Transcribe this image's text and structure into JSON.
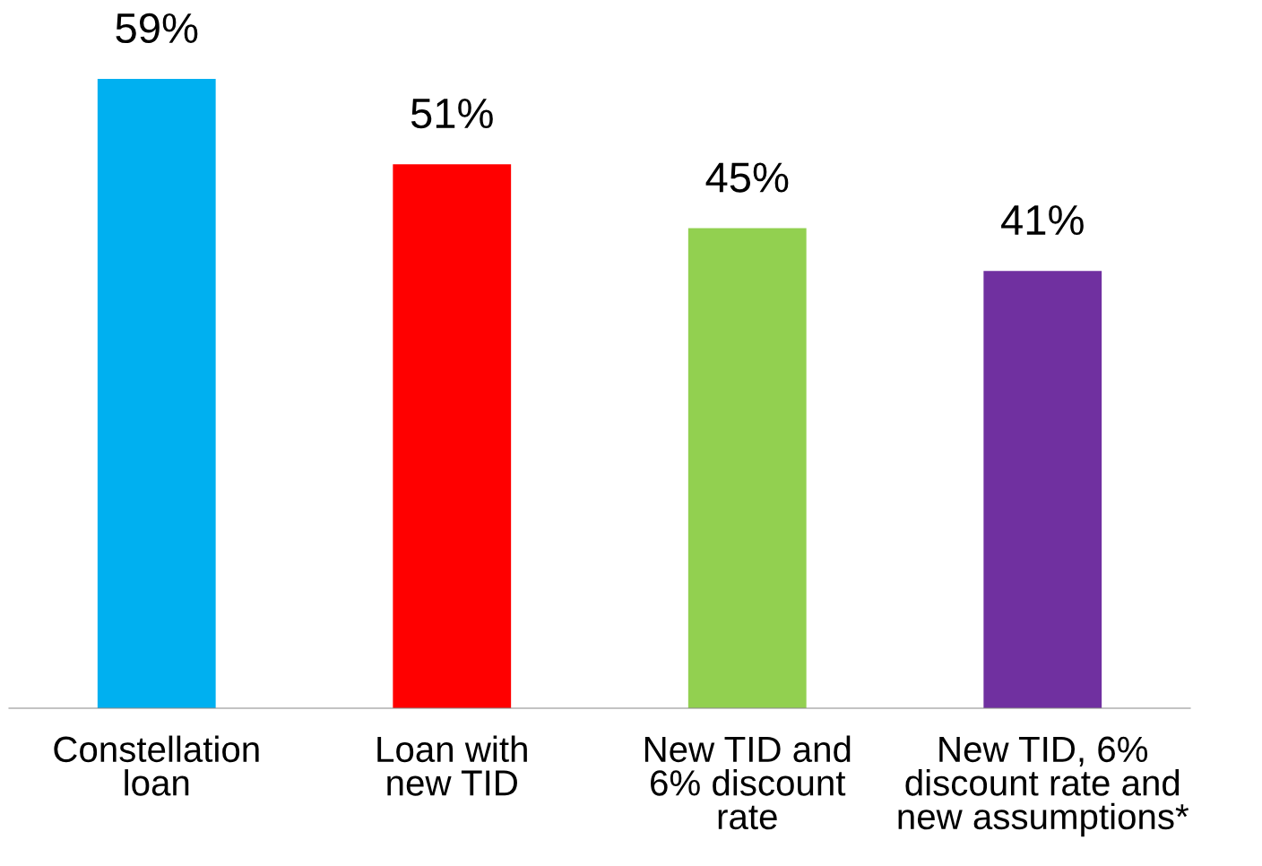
{
  "chart_data": {
    "type": "bar",
    "categories": [
      "Constellation\nloan",
      "Loan with\nnew TID",
      "New TID and\n6% discount\nrate",
      "New TID, 6%\ndiscount rate and\nnew assumptions*"
    ],
    "values": [
      59,
      51,
      45,
      41
    ],
    "value_labels": [
      "59%",
      "51%",
      "45%",
      "41%"
    ],
    "colors": [
      "#00b0f0",
      "#ff0000",
      "#92d050",
      "#7030a0"
    ],
    "grid": false,
    "legend": false
  }
}
